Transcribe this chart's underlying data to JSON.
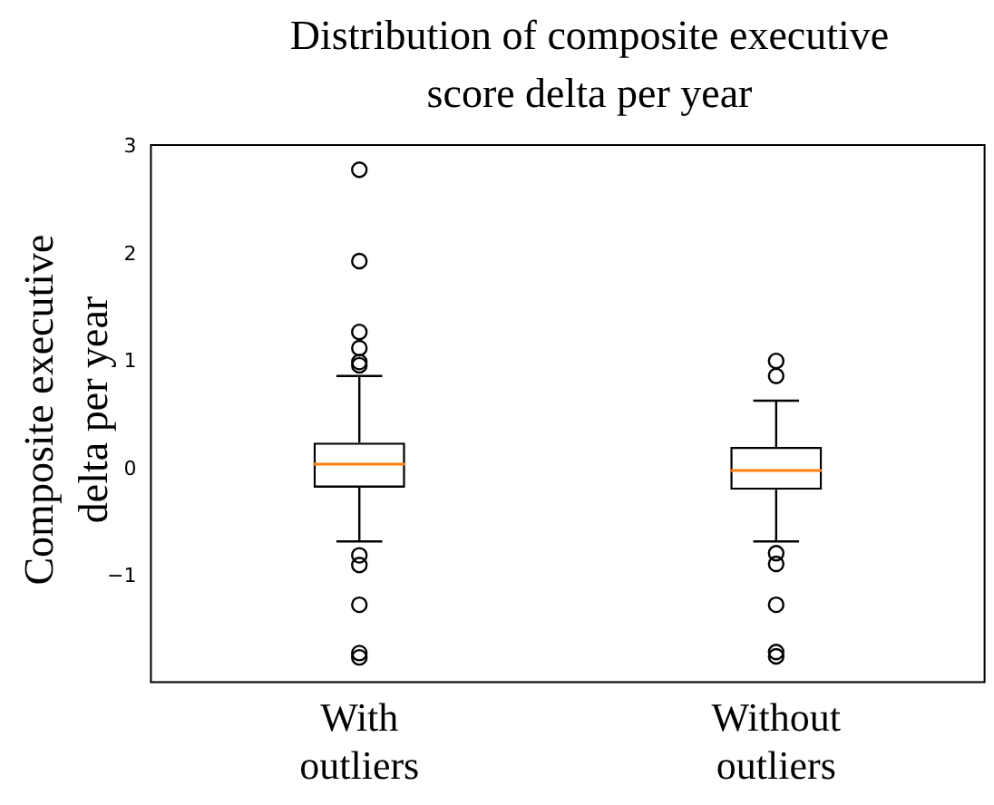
{
  "chart_data": {
    "type": "box",
    "title": "Distribution of composite executive score delta per year",
    "ylabel": "Composite executive delta per year",
    "categories": [
      "With outliers",
      "Without outliers"
    ],
    "boxes": [
      {
        "low": -0.67,
        "q1": -0.17,
        "median": 0.05,
        "q3": 0.25,
        "high": 0.87,
        "outliers": [
          2.79,
          1.94,
          1.28,
          1.13,
          1.0,
          0.97,
          -0.8,
          -0.89,
          -1.26,
          -1.71,
          -1.75
        ]
      },
      {
        "low": -0.67,
        "q1": -0.19,
        "median": -0.01,
        "q3": 0.21,
        "high": 0.64,
        "outliers": [
          1.01,
          0.87,
          -0.78,
          -0.88,
          -1.26,
          -1.7,
          -1.74
        ]
      }
    ],
    "ylim": [
      -1.98,
      3.02
    ],
    "yticks": [
      {
        "value": -1,
        "label": "−1"
      },
      0,
      1,
      2,
      3
    ],
    "grid": false,
    "legend": false,
    "marker": "circle"
  }
}
